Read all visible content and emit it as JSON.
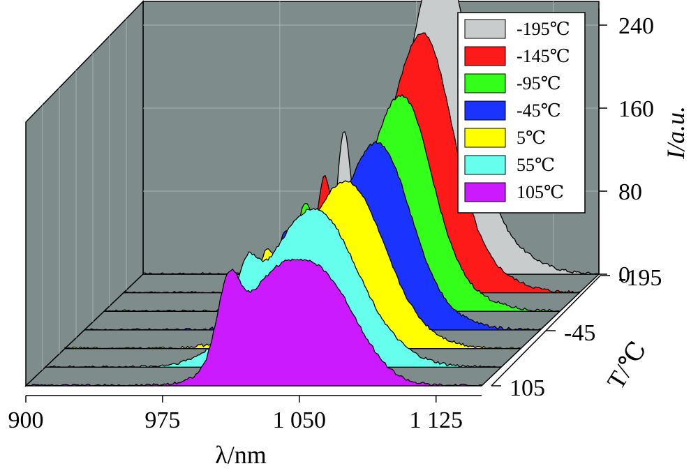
{
  "chart_data": {
    "type": "area",
    "style": "3d-waterfall",
    "xlabel": "λ/nm",
    "ylabel": "I/a.u.",
    "zlabel": "T/℃",
    "x_ticks": [
      "900",
      "975",
      "1 050",
      "1 125"
    ],
    "y_ticks": [
      "0",
      "80",
      "160",
      "240"
    ],
    "z_ticks": [
      "-195",
      "-45",
      "105"
    ],
    "xlim": [
      900,
      1150
    ],
    "ylim": [
      0,
      260
    ],
    "legend_position": "top-right",
    "grid": true,
    "background_color": "#7f8c8c",
    "series": [
      {
        "name": "-195℃",
        "temperature": -195,
        "color": "#c8cccc",
        "peaks": [
          {
            "x": 1010,
            "h": 112,
            "w": 3.5
          },
          {
            "x": 1065,
            "h": 215,
            "w": 14
          },
          {
            "x": 1048,
            "h": 115,
            "w": 22
          },
          {
            "x": 1090,
            "h": 30,
            "w": 20
          }
        ]
      },
      {
        "name": "-145℃",
        "temperature": -145,
        "color": "#ff1a1a",
        "peaks": [
          {
            "x": 1010,
            "h": 84,
            "w": 4
          },
          {
            "x": 1066,
            "h": 180,
            "w": 15
          },
          {
            "x": 1044,
            "h": 92,
            "w": 22
          },
          {
            "x": 1090,
            "h": 25,
            "w": 20
          }
        ]
      },
      {
        "name": "-95℃",
        "temperature": -95,
        "color": "#33ff1a",
        "peaks": [
          {
            "x": 1010,
            "h": 68,
            "w": 4.5
          },
          {
            "x": 1065,
            "h": 150,
            "w": 15
          },
          {
            "x": 1040,
            "h": 80,
            "w": 24
          },
          {
            "x": 1088,
            "h": 20,
            "w": 20
          }
        ]
      },
      {
        "name": "-45℃",
        "temperature": -45,
        "color": "#1a33ff",
        "peaks": [
          {
            "x": 1010,
            "h": 58,
            "w": 5
          },
          {
            "x": 1063,
            "h": 128,
            "w": 16
          },
          {
            "x": 1038,
            "h": 72,
            "w": 24
          },
          {
            "x": 1086,
            "h": 18,
            "w": 20
          }
        ]
      },
      {
        "name": "5℃",
        "temperature": 5,
        "color": "#ffff00",
        "peaks": [
          {
            "x": 1010,
            "h": 50,
            "w": 5.5
          },
          {
            "x": 1058,
            "h": 108,
            "w": 18
          },
          {
            "x": 1035,
            "h": 70,
            "w": 24
          },
          {
            "x": 1084,
            "h": 15,
            "w": 20
          }
        ]
      },
      {
        "name": "55℃",
        "temperature": 55,
        "color": "#66ffee",
        "peaks": [
          {
            "x": 1010,
            "h": 46,
            "w": 6
          },
          {
            "x": 1053,
            "h": 98,
            "w": 20
          },
          {
            "x": 1030,
            "h": 72,
            "w": 24
          },
          {
            "x": 1082,
            "h": 14,
            "w": 20
          }
        ]
      },
      {
        "name": "105℃",
        "temperature": 105,
        "color": "#cc1aff",
        "peaks": [
          {
            "x": 1011,
            "h": 65,
            "w": 6
          },
          {
            "x": 1045,
            "h": 80,
            "w": 24
          },
          {
            "x": 1068,
            "h": 50,
            "w": 18
          },
          {
            "x": 1030,
            "h": 30,
            "w": 16
          }
        ]
      }
    ]
  }
}
